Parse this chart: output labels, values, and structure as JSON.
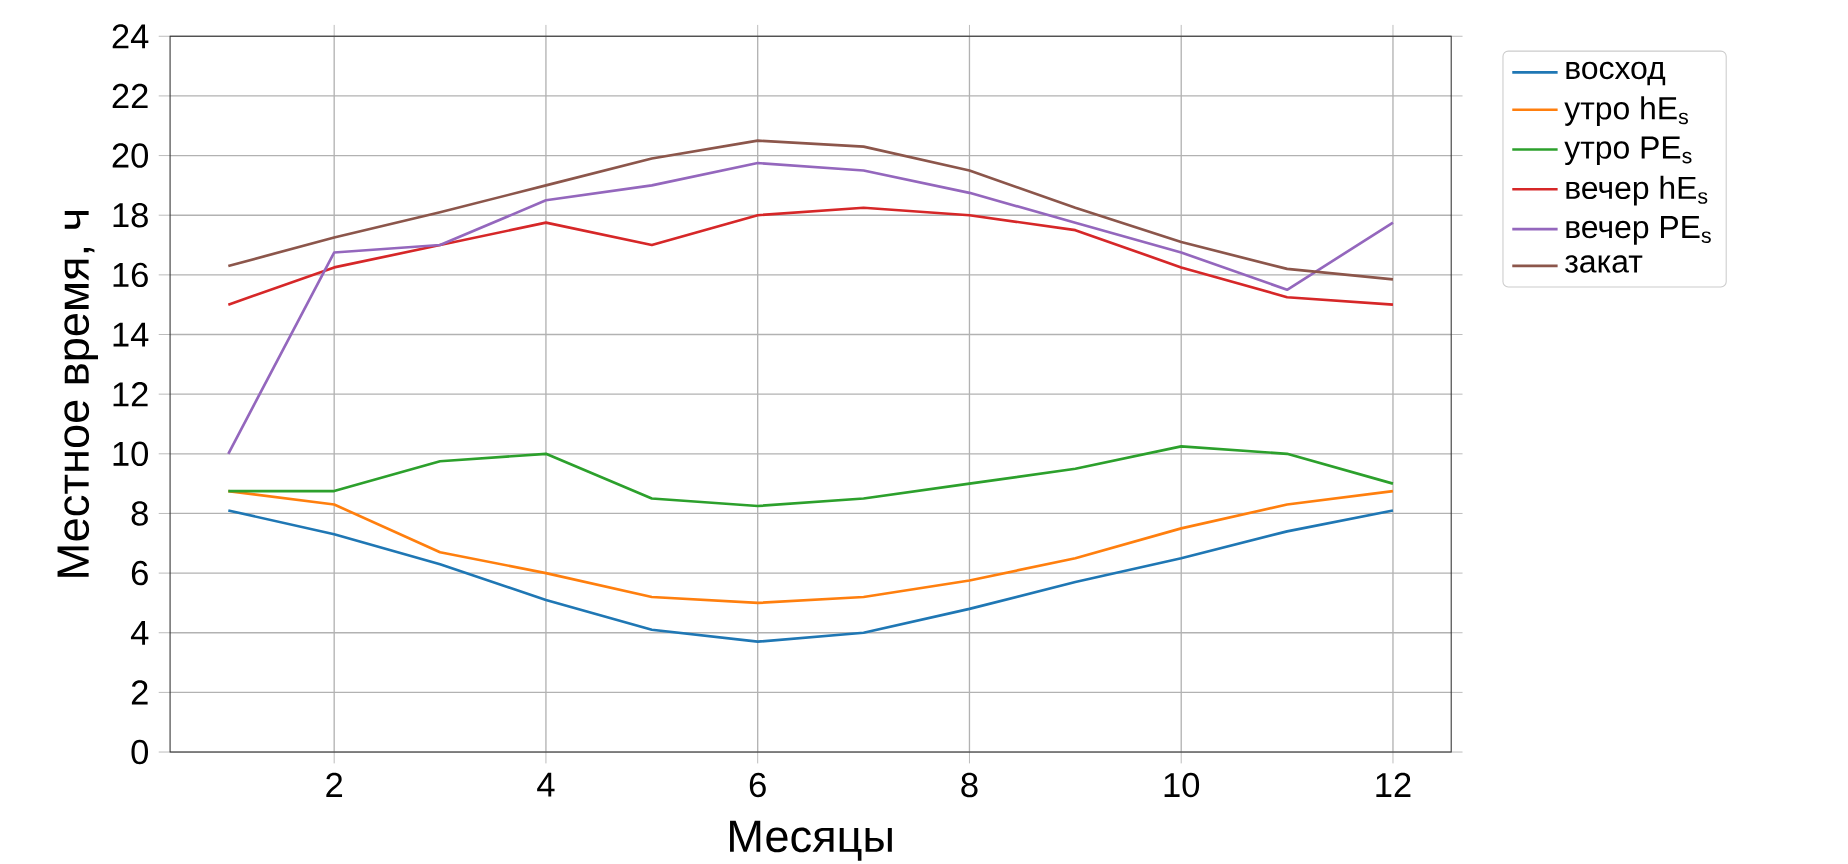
{
  "chart_data": {
    "type": "line",
    "xlabel": "Месяцы",
    "ylabel": "Местное время, ч",
    "x": [
      1,
      2,
      3,
      4,
      5,
      6,
      7,
      8,
      9,
      10,
      11,
      12
    ],
    "xlim": [
      0.45,
      12.55
    ],
    "xticks": [
      2,
      4,
      6,
      8,
      10,
      12
    ],
    "ylim": [
      0,
      24
    ],
    "yticks": [
      0,
      2,
      4,
      6,
      8,
      10,
      12,
      14,
      16,
      18,
      20,
      22,
      24
    ],
    "grid": true,
    "legend": "top right",
    "marker": "none",
    "line_style": "solid",
    "series": [
      {
        "name": "восход",
        "color": "#1f77b4",
        "values": [
          8.1,
          7.3,
          6.3,
          5.1,
          4.1,
          3.7,
          4.0,
          4.8,
          5.7,
          6.5,
          7.4,
          8.1
        ]
      },
      {
        "name": "утро hE$_{s}$",
        "color": "#ff7f0e",
        "values": [
          8.75,
          8.3,
          6.7,
          6.0,
          5.2,
          5.0,
          5.2,
          5.75,
          6.5,
          7.5,
          8.3,
          8.75
        ]
      },
      {
        "name": "утро PE$_{s}$",
        "color": "#2ca02c",
        "values": [
          8.75,
          8.75,
          9.75,
          10.0,
          8.5,
          8.25,
          8.5,
          9.0,
          9.5,
          10.25,
          10.0,
          9.0
        ]
      },
      {
        "name": "вечер hE$_{s}$",
        "color": "#d62728",
        "values": [
          15.0,
          16.25,
          17.0,
          17.75,
          17.0,
          18.0,
          18.25,
          18.0,
          17.5,
          16.25,
          15.25,
          15.0
        ]
      },
      {
        "name": "вечер PE$_{s}$",
        "color": "#9467bd",
        "values": [
          10.0,
          16.75,
          17.0,
          18.5,
          19.0,
          19.75,
          19.5,
          18.75,
          17.75,
          16.75,
          15.5,
          17.75
        ]
      },
      {
        "name": "закат",
        "color": "#8c564b",
        "values": [
          16.3,
          17.25,
          18.1,
          19.0,
          19.9,
          20.5,
          20.3,
          19.5,
          18.25,
          17.1,
          16.2,
          15.85
        ]
      }
    ]
  }
}
